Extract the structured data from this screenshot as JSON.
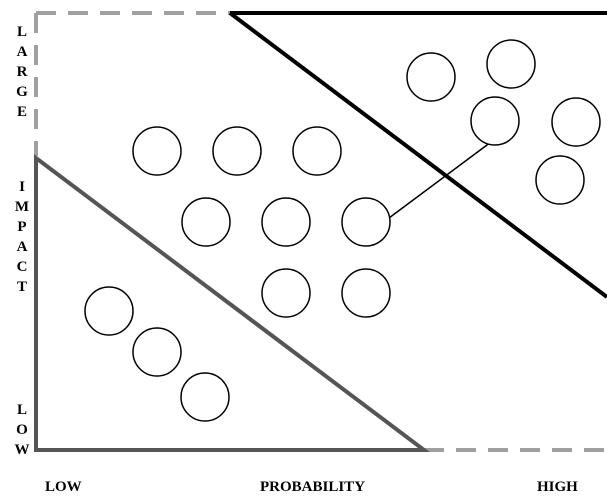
{
  "diagram": {
    "y_axis": {
      "top_label": "LARGE",
      "middle_label": "IMPACT",
      "bottom_label": "LOW"
    },
    "x_axis": {
      "left_label": "LOW",
      "middle_label": "PROBABILITY",
      "right_label": "HIGH"
    },
    "zones": [
      {
        "id": "high-risk-zone",
        "stroke": "#000000",
        "style": "solid"
      },
      {
        "id": "low-risk-zone",
        "stroke": "#555555",
        "style": "solid"
      },
      {
        "id": "frame",
        "stroke": "#a0a0a0",
        "style": "dashed"
      }
    ],
    "item_count": 16
  }
}
